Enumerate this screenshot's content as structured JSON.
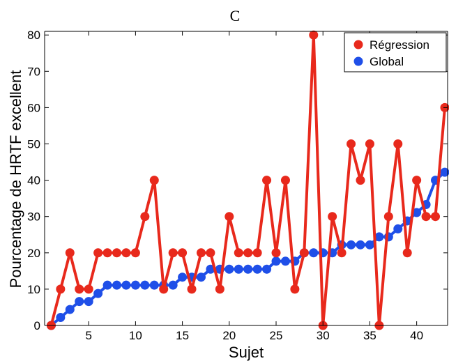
{
  "chart_data": {
    "type": "line",
    "title": "C",
    "xlabel": "Sujet",
    "ylabel": "Pourcentage de HRTF excellent",
    "xlim": [
      0.3,
      43.3
    ],
    "ylim": [
      0,
      81
    ],
    "xticks": [
      5,
      10,
      15,
      20,
      25,
      30,
      35,
      40
    ],
    "yticks": [
      0,
      10,
      20,
      30,
      40,
      50,
      60,
      70,
      80
    ],
    "legend_position": "top-right",
    "x": [
      1,
      2,
      3,
      4,
      5,
      6,
      7,
      8,
      9,
      10,
      11,
      12,
      13,
      14,
      15,
      16,
      17,
      18,
      19,
      20,
      21,
      22,
      23,
      24,
      25,
      26,
      27,
      28,
      29,
      30,
      31,
      32,
      33,
      34,
      35,
      36,
      37,
      38,
      39,
      40,
      41,
      42,
      43
    ],
    "series": [
      {
        "name": "Régression",
        "color": "#e8291c",
        "values": [
          0,
          10,
          20,
          10,
          10,
          20,
          20,
          20,
          20,
          20,
          30,
          40,
          10,
          20,
          20,
          10,
          20,
          20,
          10,
          30,
          20,
          20,
          20,
          40,
          20,
          40,
          10,
          20,
          80,
          0,
          30,
          20,
          50,
          40,
          50,
          0,
          30,
          50,
          20,
          40,
          30,
          30,
          60
        ]
      },
      {
        "name": "Global",
        "color": "#1f4fe8",
        "values": [
          0,
          2.2,
          4.4,
          6.6,
          6.6,
          8.8,
          11.1,
          11.1,
          11.1,
          11.1,
          11.1,
          11.1,
          11.1,
          11.1,
          13.3,
          13.3,
          13.3,
          15.5,
          15.5,
          15.5,
          15.5,
          15.5,
          15.5,
          15.5,
          17.7,
          17.7,
          17.7,
          20,
          20,
          20,
          20,
          22.2,
          22.2,
          22.2,
          22.2,
          24.4,
          24.4,
          26.6,
          28.8,
          31.1,
          33.3,
          40,
          42.2
        ]
      }
    ]
  }
}
